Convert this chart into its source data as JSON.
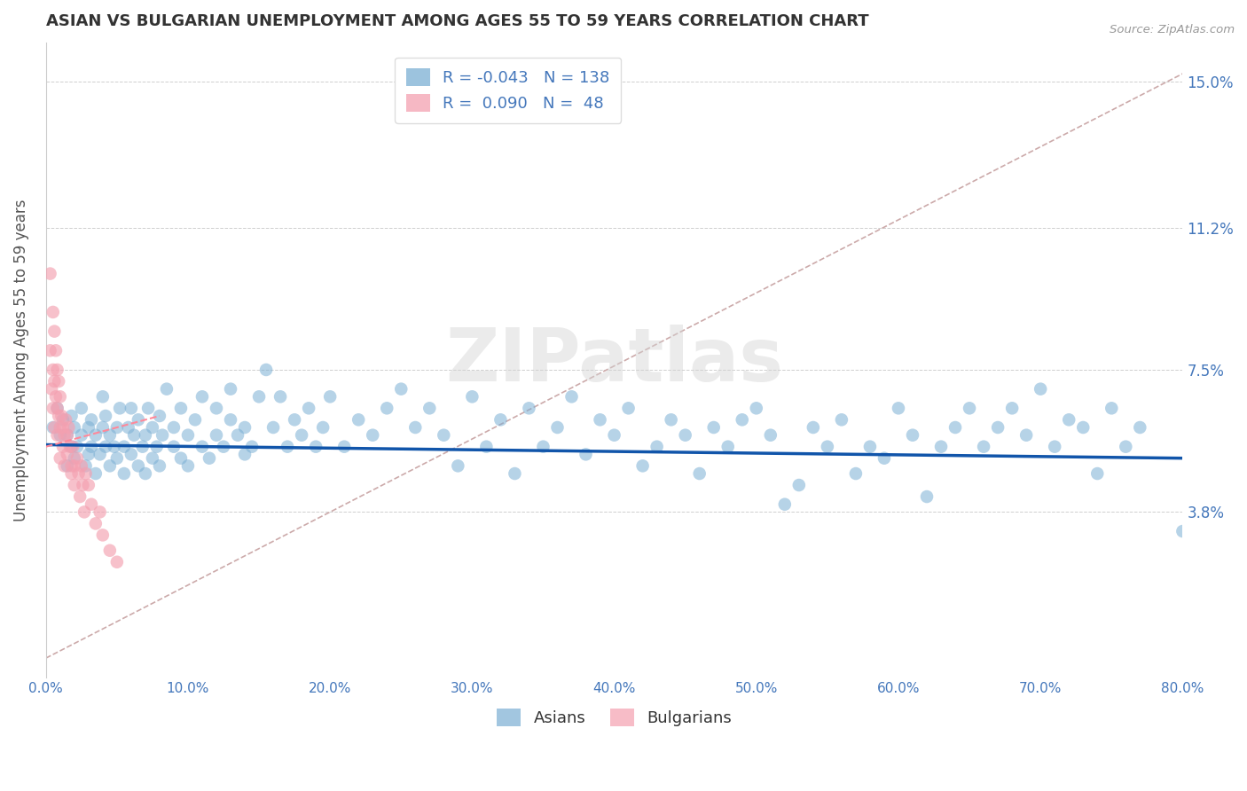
{
  "title": "ASIAN VS BULGARIAN UNEMPLOYMENT AMONG AGES 55 TO 59 YEARS CORRELATION CHART",
  "source": "Source: ZipAtlas.com",
  "ylabel": "Unemployment Among Ages 55 to 59 years",
  "xlim": [
    0.0,
    0.8
  ],
  "ylim": [
    -0.005,
    0.16
  ],
  "xticks": [
    0.0,
    0.1,
    0.2,
    0.3,
    0.4,
    0.5,
    0.6,
    0.7,
    0.8
  ],
  "xticklabels": [
    "0.0%",
    "10.0%",
    "20.0%",
    "30.0%",
    "40.0%",
    "50.0%",
    "60.0%",
    "70.0%",
    "80.0%"
  ],
  "ytick_positions": [
    0.038,
    0.075,
    0.112,
    0.15
  ],
  "ytick_labels": [
    "3.8%",
    "7.5%",
    "11.2%",
    "15.0%"
  ],
  "asian_color": "#7BAFD4",
  "bulgarian_color": "#F4A0B0",
  "asian_R": -0.043,
  "asian_N": 138,
  "bulgarian_R": 0.09,
  "bulgarian_N": 48,
  "legend_label_asian": "Asians",
  "legend_label_bulgarian": "Bulgarians",
  "watermark": "ZIPatlas",
  "grid_color": "#BBBBBB",
  "title_color": "#333333",
  "axis_label_color": "#555555",
  "tick_label_color": "#4477BB",
  "regression_line_color_asian": "#1155AA",
  "regression_line_color_bulgarian": "#FF8899",
  "diagonal_line_color": "#CCAAAA",
  "asian_line_x": [
    0.0,
    0.8
  ],
  "asian_line_y": [
    0.0555,
    0.052
  ],
  "bulg_line_x": [
    0.0,
    0.08
  ],
  "bulg_line_y": [
    0.055,
    0.063
  ],
  "diag_line_x": [
    0.0,
    0.8
  ],
  "diag_line_y": [
    0.0,
    0.152
  ],
  "asian_scatter_x": [
    0.005,
    0.008,
    0.01,
    0.012,
    0.015,
    0.015,
    0.018,
    0.018,
    0.02,
    0.02,
    0.022,
    0.025,
    0.025,
    0.028,
    0.03,
    0.03,
    0.032,
    0.032,
    0.035,
    0.035,
    0.038,
    0.04,
    0.04,
    0.042,
    0.042,
    0.045,
    0.045,
    0.048,
    0.05,
    0.05,
    0.052,
    0.055,
    0.055,
    0.058,
    0.06,
    0.06,
    0.062,
    0.065,
    0.065,
    0.068,
    0.07,
    0.07,
    0.072,
    0.075,
    0.075,
    0.078,
    0.08,
    0.08,
    0.082,
    0.085,
    0.09,
    0.09,
    0.095,
    0.095,
    0.1,
    0.1,
    0.105,
    0.11,
    0.11,
    0.115,
    0.12,
    0.12,
    0.125,
    0.13,
    0.13,
    0.135,
    0.14,
    0.14,
    0.145,
    0.15,
    0.155,
    0.16,
    0.165,
    0.17,
    0.175,
    0.18,
    0.185,
    0.19,
    0.195,
    0.2,
    0.21,
    0.22,
    0.23,
    0.24,
    0.25,
    0.26,
    0.27,
    0.28,
    0.29,
    0.3,
    0.31,
    0.32,
    0.33,
    0.34,
    0.35,
    0.36,
    0.37,
    0.38,
    0.39,
    0.4,
    0.41,
    0.42,
    0.43,
    0.44,
    0.45,
    0.46,
    0.47,
    0.48,
    0.49,
    0.5,
    0.51,
    0.52,
    0.53,
    0.54,
    0.55,
    0.56,
    0.57,
    0.58,
    0.59,
    0.6,
    0.61,
    0.62,
    0.63,
    0.64,
    0.65,
    0.66,
    0.67,
    0.68,
    0.69,
    0.7,
    0.71,
    0.72,
    0.73,
    0.74,
    0.75,
    0.76,
    0.77,
    0.8
  ],
  "asian_scatter_y": [
    0.06,
    0.065,
    0.058,
    0.062,
    0.05,
    0.058,
    0.055,
    0.063,
    0.052,
    0.06,
    0.055,
    0.058,
    0.065,
    0.05,
    0.053,
    0.06,
    0.055,
    0.062,
    0.048,
    0.058,
    0.053,
    0.06,
    0.068,
    0.055,
    0.063,
    0.05,
    0.058,
    0.055,
    0.052,
    0.06,
    0.065,
    0.048,
    0.055,
    0.06,
    0.053,
    0.065,
    0.058,
    0.05,
    0.062,
    0.055,
    0.048,
    0.058,
    0.065,
    0.052,
    0.06,
    0.055,
    0.05,
    0.063,
    0.058,
    0.07,
    0.055,
    0.06,
    0.052,
    0.065,
    0.05,
    0.058,
    0.062,
    0.055,
    0.068,
    0.052,
    0.058,
    0.065,
    0.055,
    0.062,
    0.07,
    0.058,
    0.053,
    0.06,
    0.055,
    0.068,
    0.075,
    0.06,
    0.068,
    0.055,
    0.062,
    0.058,
    0.065,
    0.055,
    0.06,
    0.068,
    0.055,
    0.062,
    0.058,
    0.065,
    0.07,
    0.06,
    0.065,
    0.058,
    0.05,
    0.068,
    0.055,
    0.062,
    0.048,
    0.065,
    0.055,
    0.06,
    0.068,
    0.053,
    0.062,
    0.058,
    0.065,
    0.05,
    0.055,
    0.062,
    0.058,
    0.048,
    0.06,
    0.055,
    0.062,
    0.065,
    0.058,
    0.04,
    0.045,
    0.06,
    0.055,
    0.062,
    0.048,
    0.055,
    0.052,
    0.065,
    0.058,
    0.042,
    0.055,
    0.06,
    0.065,
    0.055,
    0.06,
    0.065,
    0.058,
    0.07,
    0.055,
    0.062,
    0.06,
    0.048,
    0.065,
    0.055,
    0.06,
    0.033
  ],
  "bulgarian_scatter_x": [
    0.003,
    0.003,
    0.004,
    0.005,
    0.005,
    0.005,
    0.006,
    0.006,
    0.006,
    0.007,
    0.007,
    0.008,
    0.008,
    0.008,
    0.009,
    0.009,
    0.01,
    0.01,
    0.01,
    0.011,
    0.012,
    0.012,
    0.013,
    0.013,
    0.014,
    0.015,
    0.015,
    0.016,
    0.017,
    0.018,
    0.018,
    0.019,
    0.02,
    0.02,
    0.022,
    0.023,
    0.024,
    0.025,
    0.026,
    0.027,
    0.028,
    0.03,
    0.032,
    0.035,
    0.038,
    0.04,
    0.045,
    0.05
  ],
  "bulgarian_scatter_y": [
    0.1,
    0.08,
    0.07,
    0.09,
    0.075,
    0.065,
    0.085,
    0.072,
    0.06,
    0.08,
    0.068,
    0.075,
    0.065,
    0.058,
    0.072,
    0.063,
    0.068,
    0.06,
    0.052,
    0.063,
    0.06,
    0.055,
    0.058,
    0.05,
    0.062,
    0.058,
    0.053,
    0.06,
    0.055,
    0.05,
    0.048,
    0.055,
    0.05,
    0.045,
    0.052,
    0.048,
    0.042,
    0.05,
    0.045,
    0.038,
    0.048,
    0.045,
    0.04,
    0.035,
    0.038,
    0.032,
    0.028,
    0.025
  ]
}
